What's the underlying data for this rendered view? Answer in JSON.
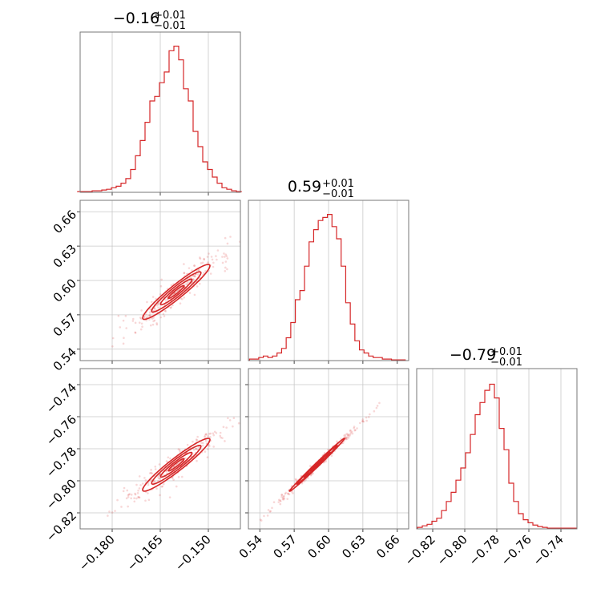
{
  "chart_data": {
    "type": "corner",
    "color": "#d62728",
    "grid": true,
    "parameters": [
      {
        "title": {
          "median": "−0.16",
          "plus": "+0.01",
          "minus": "−0.01"
        },
        "median": -0.16,
        "range": [
          -0.19,
          -0.14
        ],
        "ticks": [
          {
            "value": -0.18,
            "label": "−0.180"
          },
          {
            "value": -0.165,
            "label": "−0.165"
          },
          {
            "value": -0.15,
            "label": "−0.150"
          }
        ]
      },
      {
        "title": {
          "median": "0.59",
          "plus": "+0.01",
          "minus": "−0.01"
        },
        "median": 0.59,
        "range": [
          0.53,
          0.67
        ],
        "ticks": [
          {
            "value": 0.54,
            "label": "0.54"
          },
          {
            "value": 0.57,
            "label": "0.57"
          },
          {
            "value": 0.6,
            "label": "0.60"
          },
          {
            "value": 0.63,
            "label": "0.63"
          },
          {
            "value": 0.66,
            "label": "0.66"
          }
        ]
      },
      {
        "title": {
          "median": "−0.79",
          "plus": "+0.01",
          "minus": "−0.01"
        },
        "median": -0.79,
        "range": [
          -0.83,
          -0.73
        ],
        "ticks": [
          {
            "value": -0.82,
            "label": "−0.82"
          },
          {
            "value": -0.8,
            "label": "−0.80"
          },
          {
            "value": -0.78,
            "label": "−0.78"
          },
          {
            "value": -0.76,
            "label": "−0.76"
          },
          {
            "value": -0.74,
            "label": "−0.74"
          }
        ]
      }
    ],
    "histograms": [
      {
        "param": 0,
        "bin_centers": [
          -0.19,
          -0.1885,
          -0.187,
          -0.1855,
          -0.184,
          -0.1825,
          -0.181,
          -0.1795,
          -0.178,
          -0.1765,
          -0.175,
          -0.1735,
          -0.172,
          -0.1705,
          -0.169,
          -0.1675,
          -0.166,
          -0.1645,
          -0.163,
          -0.1615,
          -0.16,
          -0.1585,
          -0.157,
          -0.1555,
          -0.154,
          -0.1525,
          -0.151,
          -0.1495,
          -0.148,
          -0.1465,
          -0.145,
          -0.1435,
          -0.142,
          -0.1405
        ],
        "counts": [
          0.005,
          0.005,
          0.005,
          0.01,
          0.01,
          0.015,
          0.02,
          0.03,
          0.04,
          0.06,
          0.09,
          0.15,
          0.24,
          0.34,
          0.46,
          0.6,
          0.63,
          0.72,
          0.79,
          0.93,
          0.96,
          0.87,
          0.68,
          0.6,
          0.4,
          0.3,
          0.2,
          0.15,
          0.1,
          0.06,
          0.03,
          0.02,
          0.01,
          0.005
        ]
      },
      {
        "param": 1,
        "bin_centers": [
          0.533,
          0.537,
          0.541,
          0.545,
          0.549,
          0.553,
          0.557,
          0.561,
          0.565,
          0.569,
          0.573,
          0.577,
          0.581,
          0.585,
          0.589,
          0.593,
          0.597,
          0.601,
          0.605,
          0.609,
          0.613,
          0.617,
          0.621,
          0.625,
          0.629,
          0.633,
          0.637,
          0.641,
          0.645,
          0.649,
          0.653,
          0.657,
          0.661,
          0.665
        ],
        "counts": [
          0.01,
          0.01,
          0.02,
          0.03,
          0.02,
          0.03,
          0.05,
          0.08,
          0.15,
          0.25,
          0.4,
          0.46,
          0.62,
          0.78,
          0.86,
          0.92,
          0.94,
          0.96,
          0.88,
          0.8,
          0.62,
          0.38,
          0.24,
          0.13,
          0.07,
          0.05,
          0.03,
          0.02,
          0.02,
          0.01,
          0.01,
          0.005,
          0.005,
          0.005
        ]
      },
      {
        "param": 2,
        "bin_centers": [
          -0.828,
          -0.825,
          -0.822,
          -0.819,
          -0.816,
          -0.813,
          -0.81,
          -0.807,
          -0.804,
          -0.801,
          -0.798,
          -0.795,
          -0.792,
          -0.789,
          -0.786,
          -0.783,
          -0.78,
          -0.777,
          -0.774,
          -0.771,
          -0.768,
          -0.765,
          -0.762,
          -0.759,
          -0.756,
          -0.753,
          -0.75,
          -0.747,
          -0.744,
          -0.741,
          -0.738,
          -0.735,
          -0.732
        ],
        "counts": [
          0.01,
          0.02,
          0.03,
          0.05,
          0.07,
          0.12,
          0.18,
          0.24,
          0.32,
          0.4,
          0.5,
          0.62,
          0.75,
          0.83,
          0.91,
          0.95,
          0.86,
          0.66,
          0.52,
          0.3,
          0.18,
          0.1,
          0.06,
          0.04,
          0.025,
          0.015,
          0.01,
          0.005,
          0.005,
          0.005,
          0.005,
          0.005,
          0.005
        ]
      }
    ],
    "pairs": [
      {
        "x_param": 0,
        "y_param": 1,
        "mean": [
          -0.16,
          0.59
        ],
        "sigma": [
          0.007,
          0.016
        ],
        "rho": 0.95
      },
      {
        "x_param": 0,
        "y_param": 2,
        "mean": [
          -0.16,
          -0.79
        ],
        "sigma": [
          0.007,
          0.011
        ],
        "rho": 0.95
      },
      {
        "x_param": 1,
        "y_param": 2,
        "mean": [
          0.59,
          -0.79
        ],
        "sigma": [
          0.016,
          0.011
        ],
        "rho": 0.995
      }
    ]
  }
}
